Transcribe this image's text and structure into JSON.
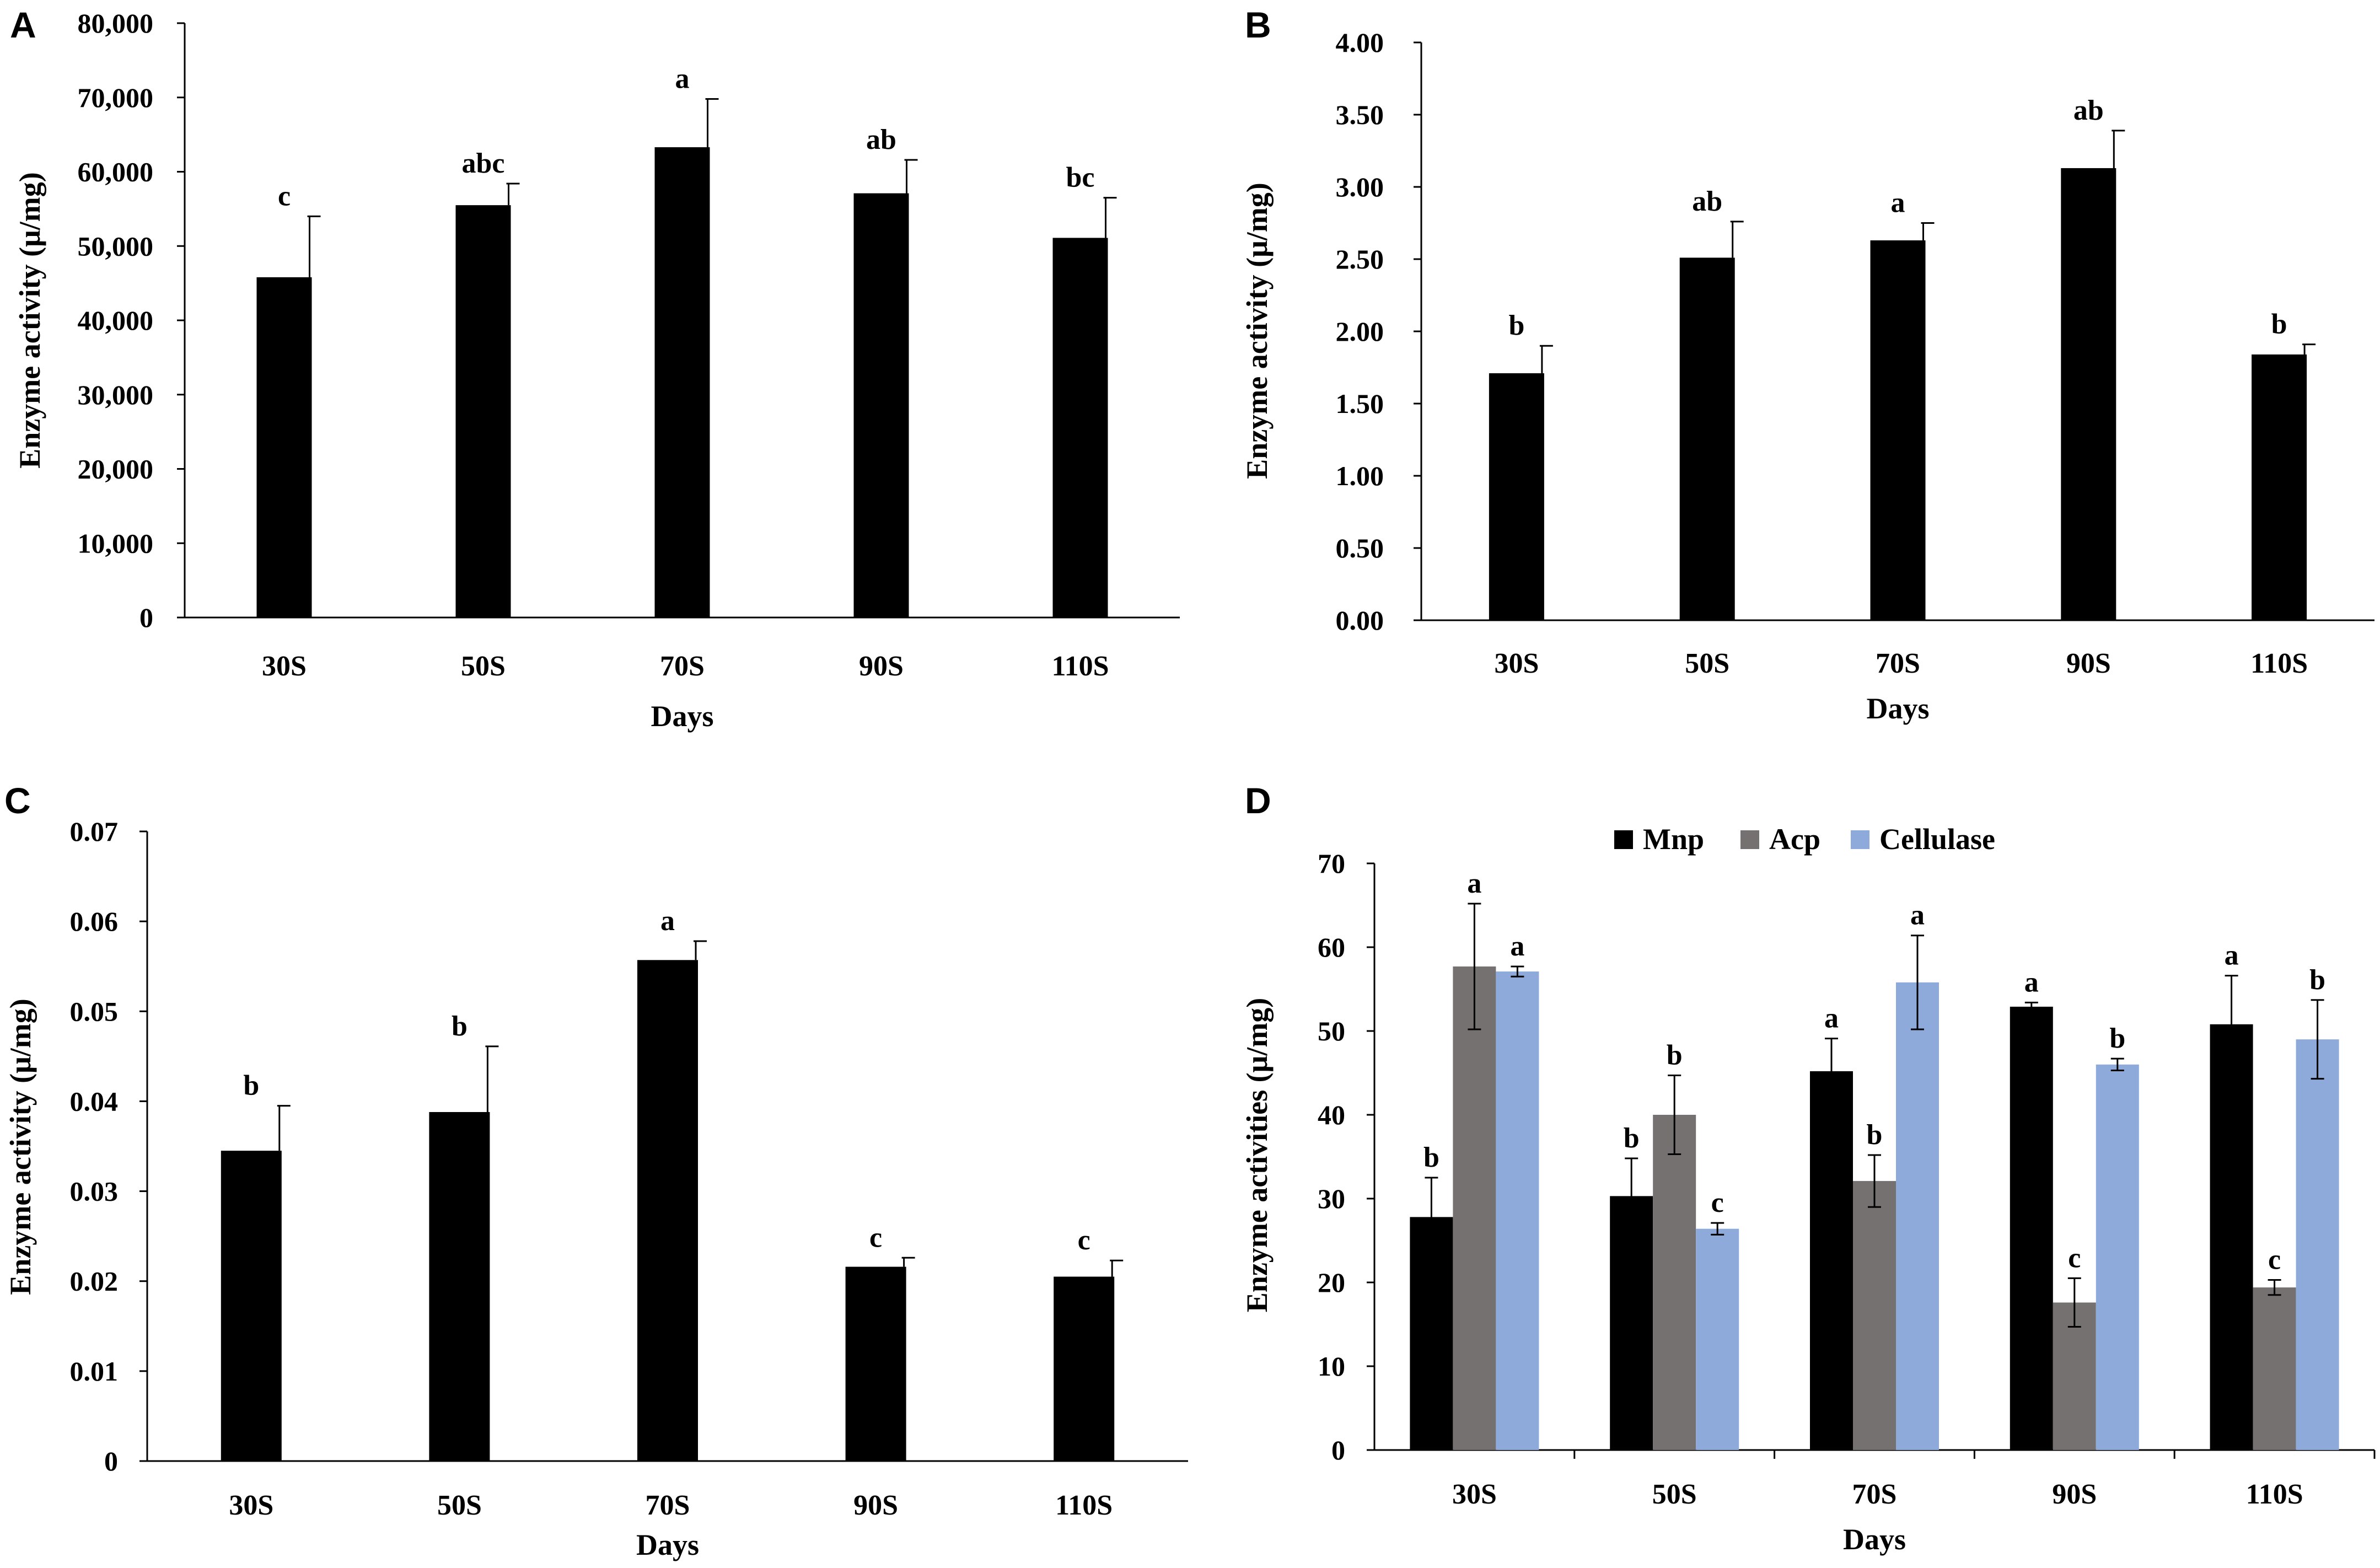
{
  "chart_data": [
    {
      "panel": "A",
      "type": "bar",
      "categories": [
        "30S",
        "50S",
        "70S",
        "90S",
        "110S"
      ],
      "values": [
        45800,
        55500,
        63300,
        57100,
        51100
      ],
      "errors": [
        8200,
        2900,
        6500,
        4500,
        5400
      ],
      "letters": [
        "c",
        "abc",
        "a",
        "ab",
        "bc"
      ],
      "ylim": [
        0,
        80000
      ],
      "yticks": [
        0,
        10000,
        20000,
        30000,
        40000,
        50000,
        60000,
        70000,
        80000
      ],
      "ytick_labels": [
        "0",
        "10,000",
        "20,000",
        "30,000",
        "40,000",
        "50,000",
        "60,000",
        "70,000",
        "80,000"
      ],
      "xlabel": "Days",
      "ylabel": "Enzyme activity (μ/mg)",
      "bar_color": "#000000"
    },
    {
      "panel": "B",
      "type": "bar",
      "categories": [
        "30S",
        "50S",
        "70S",
        "90S",
        "110S"
      ],
      "values": [
        1.71,
        2.51,
        2.63,
        3.13,
        1.84
      ],
      "errors": [
        0.19,
        0.25,
        0.12,
        0.26,
        0.07
      ],
      "letters": [
        "b",
        "ab",
        "a",
        "ab",
        "b"
      ],
      "ylim": [
        0,
        4
      ],
      "yticks": [
        0,
        0.5,
        1,
        1.5,
        2,
        2.5,
        3,
        3.5,
        4
      ],
      "ytick_labels": [
        "0.00",
        "0.50",
        "1.00",
        "1.50",
        "2.00",
        "2.50",
        "3.00",
        "3.50",
        "4.00"
      ],
      "xlabel": "Days",
      "ylabel": "Enzyme activity  (μ/mg)",
      "bar_color": "#000000"
    },
    {
      "panel": "C",
      "type": "bar",
      "categories": [
        "30S",
        "50S",
        "70S",
        "90S",
        "110S"
      ],
      "values": [
        0.0345,
        0.0388,
        0.0557,
        0.0216,
        0.0205
      ],
      "errors": [
        0.005,
        0.0073,
        0.0021,
        0.001,
        0.0018
      ],
      "letters": [
        "b",
        "b",
        "a",
        "c",
        "c"
      ],
      "ylim": [
        0,
        0.07
      ],
      "yticks": [
        0,
        0.01,
        0.02,
        0.03,
        0.04,
        0.05,
        0.06,
        0.07
      ],
      "ytick_labels": [
        "0",
        "0.01",
        "0.02",
        "0.03",
        "0.04",
        "0.05",
        "0.06",
        "0.07"
      ],
      "xlabel": "Days",
      "ylabel": "Enzyme activity (μ/mg)",
      "bar_color": "#000000"
    },
    {
      "panel": "D",
      "type": "bar",
      "categories": [
        "30S",
        "50S",
        "70S",
        "90S",
        "110S"
      ],
      "series": [
        {
          "name": "Mnp",
          "color": "#000000",
          "values": [
            27.8,
            30.3,
            45.2,
            52.9,
            50.8
          ],
          "errors": [
            4.7,
            4.5,
            3.9,
            0.5,
            5.8
          ],
          "letters": [
            "b",
            "b",
            "a",
            "a",
            "a"
          ]
        },
        {
          "name": "Acp",
          "color": "#767171",
          "values": [
            57.7,
            40,
            32.1,
            17.6,
            19.4
          ],
          "errors": [
            7.5,
            4.7,
            3.1,
            2.9,
            0.9
          ],
          "letters": [
            "a",
            "b",
            "b",
            "c",
            "c"
          ]
        },
        {
          "name": "Cellulase",
          "color": "#8eaadb",
          "values": [
            57.1,
            26.4,
            55.8,
            46,
            49
          ],
          "errors": [
            0.6,
            0.7,
            5.6,
            0.7,
            4.7
          ],
          "letters": [
            "a",
            "c",
            "a",
            "b",
            "b"
          ]
        }
      ],
      "ylim": [
        0,
        70
      ],
      "yticks": [
        0,
        10,
        20,
        30,
        40,
        50,
        60,
        70
      ],
      "ytick_labels": [
        "0",
        "10",
        "20",
        "30",
        "40",
        "50",
        "60",
        "70"
      ],
      "xlabel": "Days",
      "ylabel": "Enzyme activities (μ/mg)",
      "legend_position": "top"
    }
  ]
}
